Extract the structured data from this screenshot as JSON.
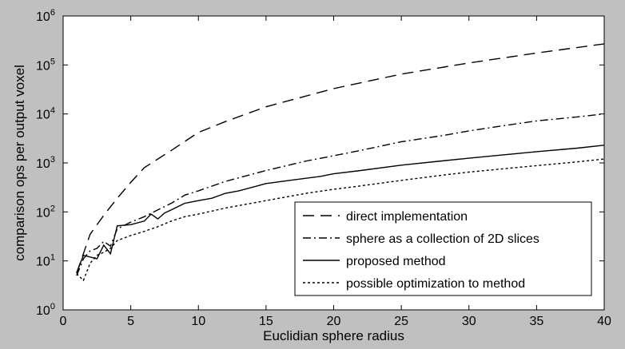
{
  "figure": {
    "background": "#c0c0c0",
    "plot_background": "#ffffff"
  },
  "chart_data": {
    "type": "line",
    "title": "",
    "xlabel": "Euclidian sphere radius",
    "ylabel": "comparison ops per output voxel",
    "xlim": [
      0,
      40
    ],
    "ylim_log10": [
      0,
      6
    ],
    "yscale": "log",
    "grid": false,
    "x_ticks": [
      0,
      5,
      10,
      15,
      20,
      25,
      30,
      35,
      40
    ],
    "y_tick_exponents": [
      0,
      1,
      2,
      3,
      4,
      5,
      6
    ],
    "y_tick_base": "10",
    "legend_position": "bottom-right",
    "series": [
      {
        "name": "direct implementation",
        "style": "dashed",
        "color": "#000000",
        "points": [
          [
            1,
            5.6
          ],
          [
            2,
            35
          ],
          [
            3,
            85
          ],
          [
            4,
            190
          ],
          [
            5,
            400
          ],
          [
            6,
            800
          ],
          [
            8,
            1800
          ],
          [
            10,
            4200
          ],
          [
            12,
            7000
          ],
          [
            15,
            14000
          ],
          [
            20,
            33000
          ],
          [
            25,
            65000
          ],
          [
            30,
            110000
          ],
          [
            35,
            175000
          ],
          [
            40,
            270000
          ]
        ]
      },
      {
        "name": "sphere as a collection of 2D slices",
        "style": "dashdot",
        "color": "#000000",
        "points": [
          [
            1,
            5
          ],
          [
            1.5,
            11
          ],
          [
            2,
            16
          ],
          [
            2.5,
            18
          ],
          [
            3,
            25
          ],
          [
            3.5,
            20
          ],
          [
            4,
            45
          ],
          [
            5,
            62
          ],
          [
            6,
            80
          ],
          [
            7,
            110
          ],
          [
            8,
            150
          ],
          [
            9,
            220
          ],
          [
            10,
            270
          ],
          [
            12,
            420
          ],
          [
            15,
            700
          ],
          [
            18,
            1100
          ],
          [
            20,
            1400
          ],
          [
            22,
            1800
          ],
          [
            25,
            2700
          ],
          [
            28,
            3600
          ],
          [
            30,
            4500
          ],
          [
            33,
            6000
          ],
          [
            35,
            7200
          ],
          [
            38,
            8700
          ],
          [
            40,
            10000
          ]
        ]
      },
      {
        "name": "proposed method",
        "style": "solid",
        "color": "#000000",
        "points": [
          [
            1,
            5.8
          ],
          [
            1.5,
            13
          ],
          [
            2,
            12
          ],
          [
            2.5,
            11
          ],
          [
            3,
            21
          ],
          [
            3.5,
            14
          ],
          [
            4,
            52
          ],
          [
            5,
            55
          ],
          [
            6,
            65
          ],
          [
            6.5,
            90
          ],
          [
            7,
            72
          ],
          [
            7.5,
            95
          ],
          [
            8,
            110
          ],
          [
            9,
            150
          ],
          [
            10,
            170
          ],
          [
            11,
            190
          ],
          [
            12,
            240
          ],
          [
            13,
            270
          ],
          [
            14,
            320
          ],
          [
            15,
            380
          ],
          [
            17,
            450
          ],
          [
            19,
            530
          ],
          [
            20,
            600
          ],
          [
            22,
            700
          ],
          [
            25,
            900
          ],
          [
            28,
            1100
          ],
          [
            30,
            1250
          ],
          [
            33,
            1500
          ],
          [
            35,
            1700
          ],
          [
            38,
            2000
          ],
          [
            40,
            2300
          ]
        ]
      },
      {
        "name": "possible optimization to method",
        "style": "dotted",
        "color": "#000000",
        "points": [
          [
            1,
            5.5
          ],
          [
            1.5,
            4
          ],
          [
            2,
            9
          ],
          [
            2.5,
            13
          ],
          [
            3,
            15
          ],
          [
            3.5,
            18
          ],
          [
            4,
            26
          ],
          [
            5,
            33
          ],
          [
            6,
            40
          ],
          [
            7,
            50
          ],
          [
            8,
            65
          ],
          [
            9,
            80
          ],
          [
            10,
            90
          ],
          [
            12,
            120
          ],
          [
            15,
            170
          ],
          [
            18,
            240
          ],
          [
            20,
            290
          ],
          [
            22,
            340
          ],
          [
            25,
            440
          ],
          [
            28,
            560
          ],
          [
            30,
            650
          ],
          [
            33,
            780
          ],
          [
            35,
            880
          ],
          [
            38,
            1050
          ],
          [
            40,
            1200
          ]
        ]
      }
    ]
  }
}
